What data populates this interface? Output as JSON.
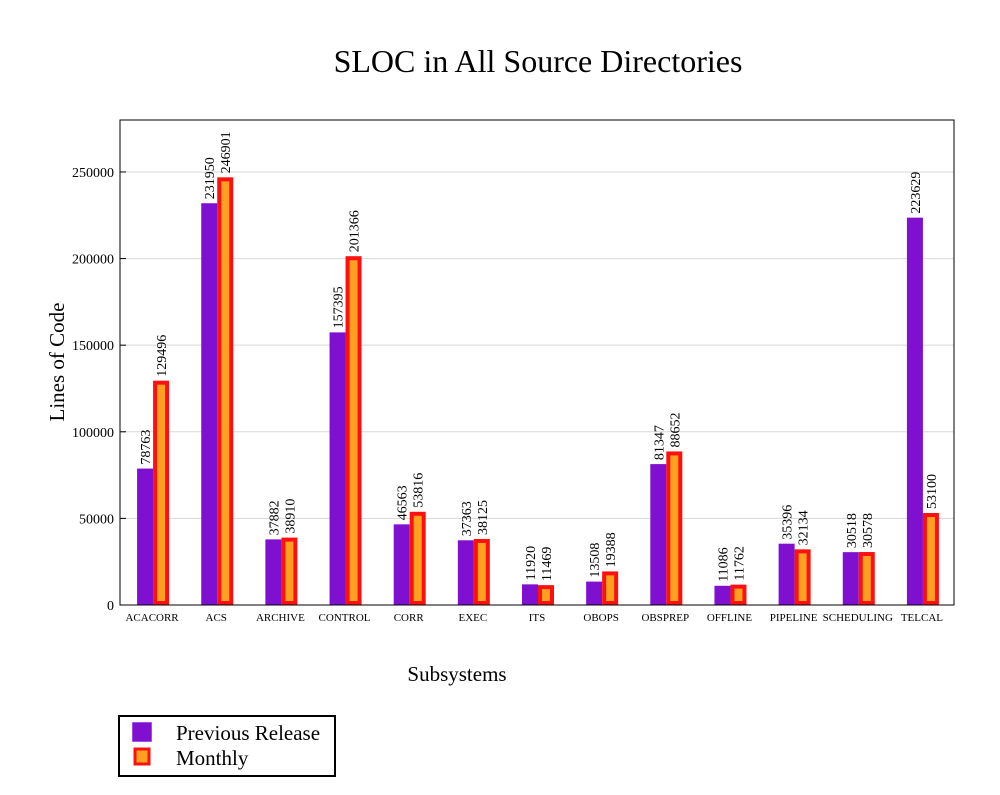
{
  "chart_data": {
    "type": "bar",
    "title": "SLOC in All Source Directories",
    "xlabel": "Subsystems",
    "ylabel": "Lines of Code",
    "ylim": [
      0,
      280000
    ],
    "yticks": [
      0,
      50000,
      100000,
      150000,
      200000,
      250000
    ],
    "ytick_labels": [
      "0",
      "50000",
      "100000",
      "150000",
      "200000",
      "250000"
    ],
    "grid": true,
    "legend_position": "bottom-left",
    "categories": [
      "ACACORR",
      "ACS",
      "ARCHIVE",
      "CONTROL",
      "CORR",
      "EXEC",
      "ITS",
      "OBOPS",
      "OBSPREP",
      "OFFLINE",
      "PIPELINE",
      "SCHEDULING",
      "TELCAL"
    ],
    "series": [
      {
        "name": "Previous Release",
        "fill": "#8010d0",
        "border": "#8010d0",
        "values": [
          78763,
          231950,
          37882,
          157395,
          46563,
          37363,
          11920,
          13508,
          81347,
          11086,
          35396,
          30518,
          223629
        ]
      },
      {
        "name": "Monthly",
        "fill": "#ffa020",
        "border": "#ff1010",
        "values": [
          129496,
          246901,
          38910,
          201366,
          53816,
          38125,
          11469,
          19388,
          88652,
          11762,
          32134,
          30578,
          53100
        ]
      }
    ]
  }
}
